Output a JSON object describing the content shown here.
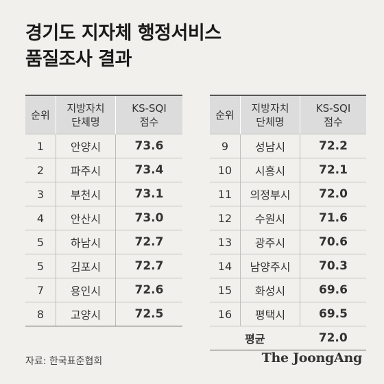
{
  "title_line1": "경기도 지자체 행정서비스",
  "title_line2": "품질조사 결과",
  "headers": {
    "rank": "순위",
    "name_line1": "지방자치",
    "name_line2": "단체명",
    "score_line1": "KS-SQI",
    "score_line2": "점수"
  },
  "left_rows": [
    {
      "rank": "1",
      "name": "안양시",
      "score": "73.6"
    },
    {
      "rank": "2",
      "name": "파주시",
      "score": "73.4"
    },
    {
      "rank": "3",
      "name": "부천시",
      "score": "73.1"
    },
    {
      "rank": "4",
      "name": "안산시",
      "score": "73.0"
    },
    {
      "rank": "5",
      "name": "하남시",
      "score": "72.7"
    },
    {
      "rank": "5",
      "name": "김포시",
      "score": "72.7"
    },
    {
      "rank": "7",
      "name": "용인시",
      "score": "72.6"
    },
    {
      "rank": "8",
      "name": "고양시",
      "score": "72.5"
    }
  ],
  "right_rows": [
    {
      "rank": "9",
      "name": "성남시",
      "score": "72.2"
    },
    {
      "rank": "10",
      "name": "시흥시",
      "score": "72.1"
    },
    {
      "rank": "11",
      "name": "의정부시",
      "score": "72.0"
    },
    {
      "rank": "12",
      "name": "수원시",
      "score": "71.6"
    },
    {
      "rank": "13",
      "name": "광주시",
      "score": "70.6"
    },
    {
      "rank": "14",
      "name": "남양주시",
      "score": "70.3"
    },
    {
      "rank": "15",
      "name": "화성시",
      "score": "69.6"
    },
    {
      "rank": "16",
      "name": "평택시",
      "score": "69.5"
    }
  ],
  "average": {
    "label": "평균",
    "score": "72.0"
  },
  "source": "자료: 한국표준협회",
  "logo": "The JoongAng",
  "colors": {
    "score_red": "#e4361c",
    "average_blue": "#1b8fd3",
    "background": "#f1f0ec"
  }
}
